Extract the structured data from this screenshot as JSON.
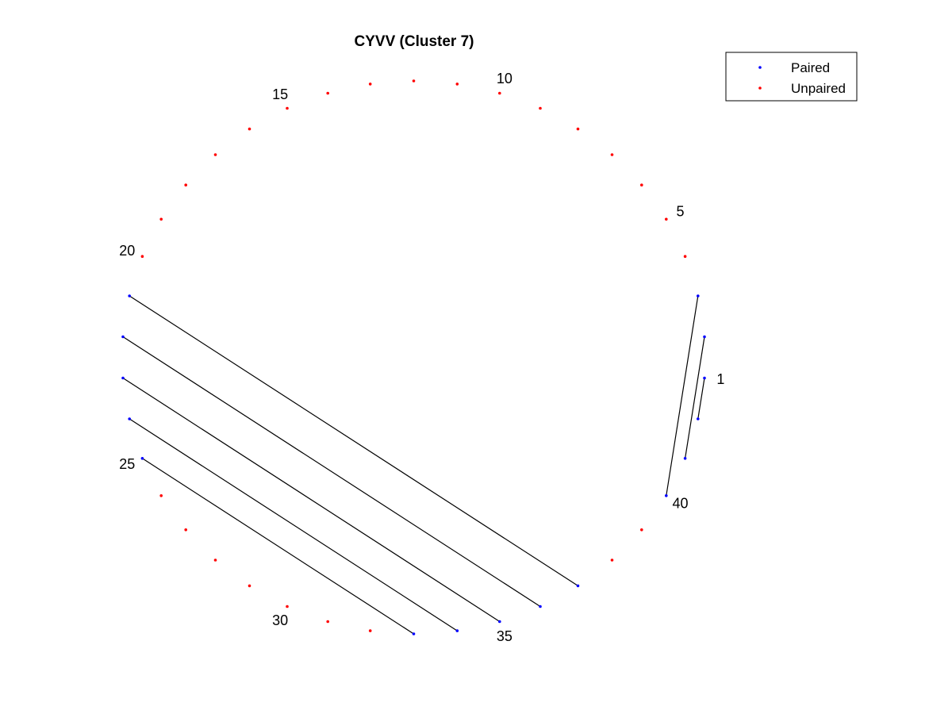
{
  "chart_data": {
    "type": "scatter",
    "subtype": "circular-arc-diagram",
    "title": "CYVV (Cluster 7)",
    "n_positions": 42,
    "start_position": 1,
    "direction": "counterclockwise",
    "position_labels": [
      1,
      5,
      10,
      15,
      20,
      25,
      30,
      35,
      40
    ],
    "series": [
      {
        "name": "Paired",
        "color": "#0000ff",
        "positions": [
          1,
          2,
          3,
          21,
          22,
          23,
          24,
          25,
          33,
          34,
          35,
          36,
          37,
          40,
          41,
          42
        ]
      },
      {
        "name": "Unpaired",
        "color": "#ff0000",
        "positions": [
          4,
          5,
          6,
          7,
          8,
          9,
          10,
          11,
          12,
          13,
          14,
          15,
          16,
          17,
          18,
          19,
          20,
          26,
          27,
          28,
          29,
          30,
          31,
          32,
          38,
          39
        ]
      }
    ],
    "pairs": [
      [
        1,
        42
      ],
      [
        2,
        41
      ],
      [
        3,
        40
      ],
      [
        21,
        37
      ],
      [
        22,
        36
      ],
      [
        23,
        35
      ],
      [
        24,
        34
      ],
      [
        25,
        33
      ]
    ],
    "pair_line_color": "#000000",
    "legend": {
      "placement": "top-right",
      "entries": [
        "Paired",
        "Unpaired"
      ]
    },
    "axes_visible": false,
    "grid": false
  }
}
